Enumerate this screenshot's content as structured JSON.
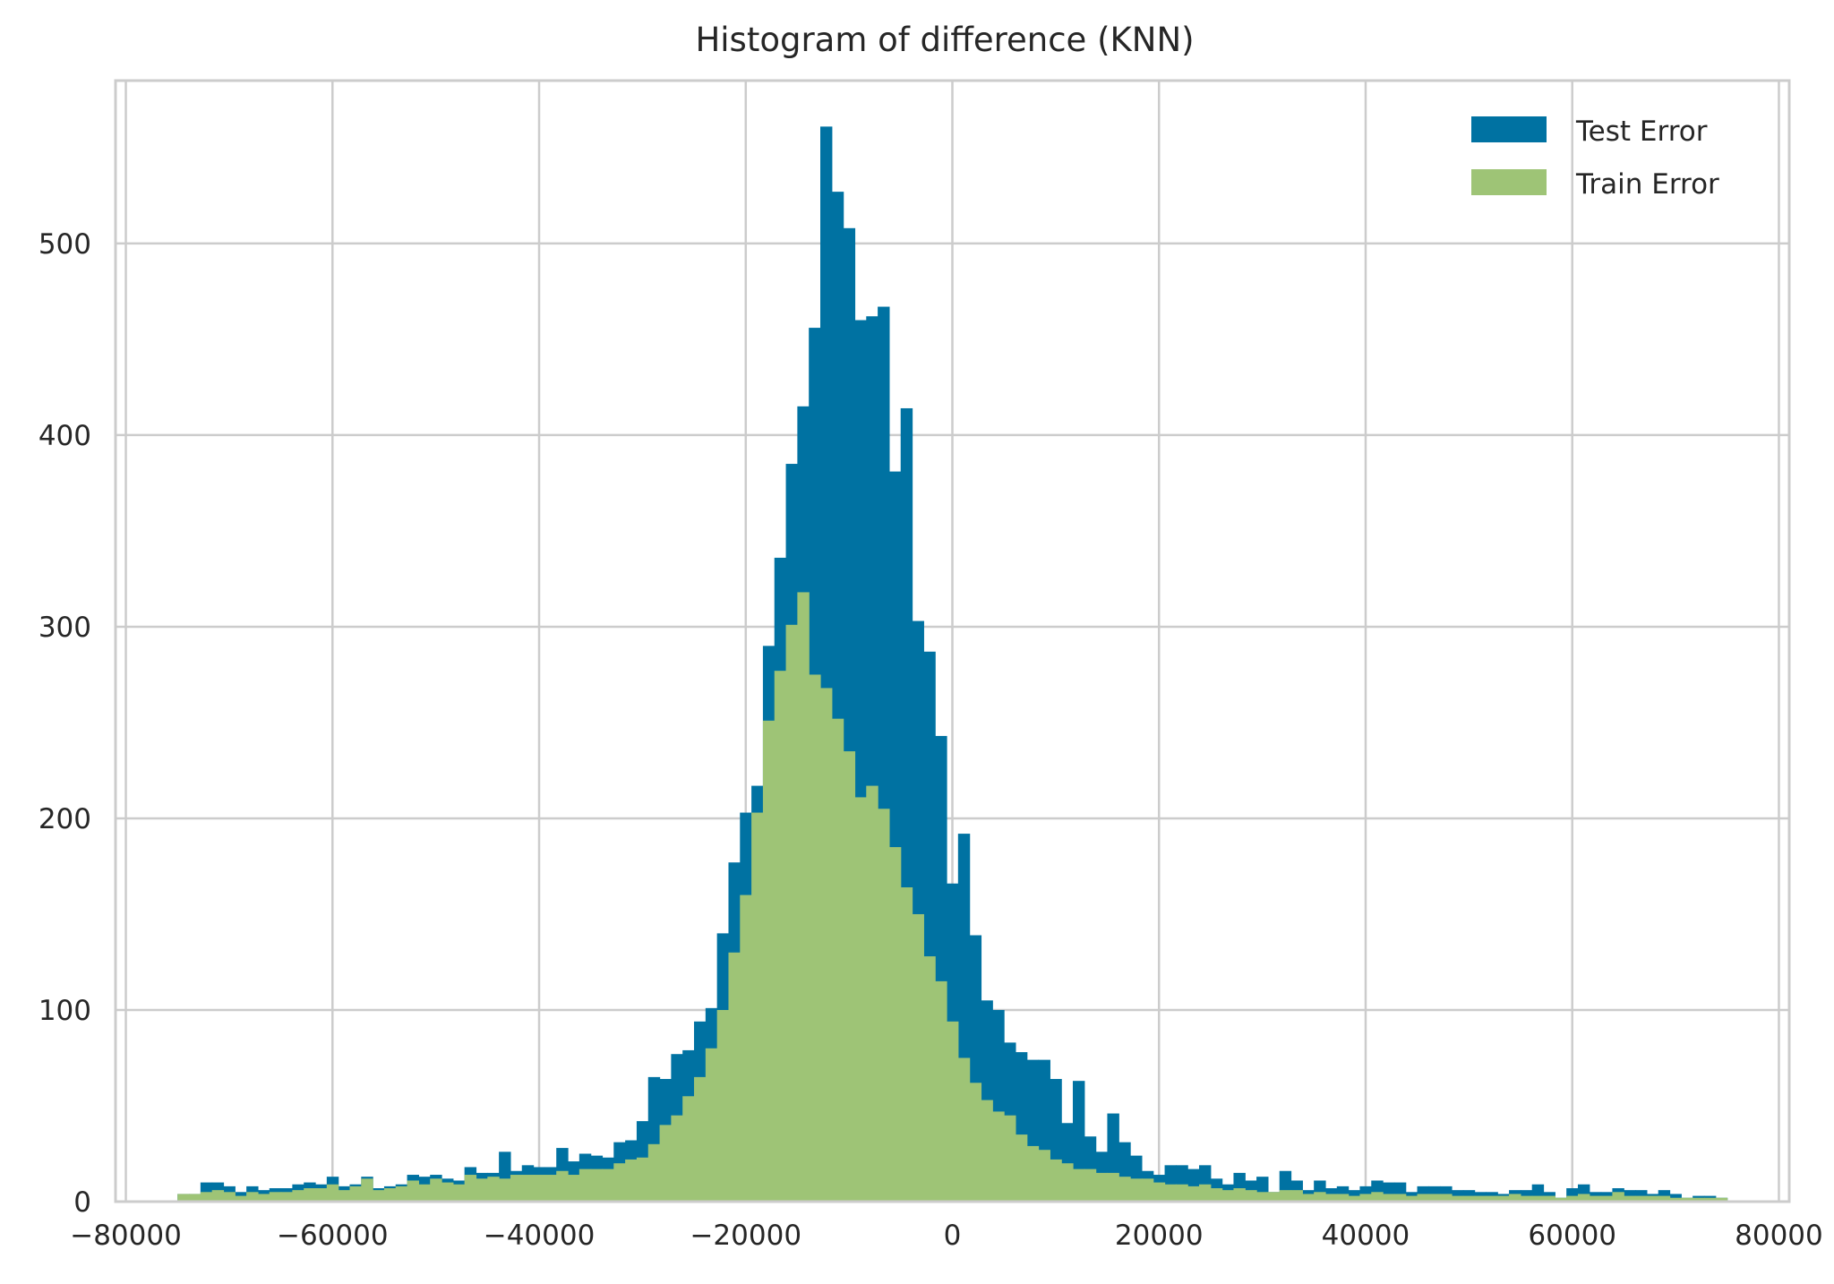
{
  "chart_data": {
    "type": "bar",
    "title": "Histogram of difference (KNN)",
    "xlabel": "",
    "ylabel": "",
    "xlim": [
      -81000,
      81000
    ],
    "ylim": [
      0,
      585
    ],
    "grid": true,
    "legend": "top-right",
    "x_ticks": [
      -80000,
      -60000,
      -40000,
      -20000,
      0,
      20000,
      40000,
      60000,
      80000
    ],
    "x_tick_labels": [
      "−80000",
      "−60000",
      "−40000",
      "−20000",
      "0",
      "20000",
      "40000",
      "60000",
      "80000"
    ],
    "y_ticks": [
      0,
      100,
      200,
      300,
      400,
      500
    ],
    "y_tick_labels": [
      "0",
      "100",
      "200",
      "300",
      "400",
      "500"
    ],
    "bin_start": -75000,
    "bin_width": 1111,
    "series": [
      {
        "name": "Test Error",
        "color": "#0072a2",
        "values": [
          4,
          4,
          10,
          10,
          8,
          5,
          8,
          6,
          7,
          7,
          9,
          10,
          9,
          13,
          8,
          9,
          13,
          7,
          8,
          9,
          14,
          13,
          14,
          12,
          11,
          18,
          15,
          15,
          26,
          16,
          19,
          18,
          18,
          28,
          21,
          25,
          24,
          23,
          31,
          32,
          42,
          65,
          64,
          77,
          79,
          94,
          101,
          140,
          177,
          203,
          217,
          290,
          336,
          385,
          415,
          456,
          561,
          527,
          508,
          460,
          462,
          467,
          381,
          414,
          303,
          287,
          243,
          166,
          192,
          139,
          105,
          100,
          83,
          78,
          74,
          74,
          64,
          41,
          63,
          34,
          26,
          46,
          31,
          24,
          16,
          14,
          19,
          19,
          17,
          19,
          12,
          9,
          15,
          11,
          13,
          5,
          16,
          11,
          6,
          11,
          7,
          8,
          6,
          8,
          11,
          10,
          10,
          5,
          8,
          8,
          8,
          6,
          6,
          5,
          5,
          4,
          6,
          6,
          9,
          5,
          2,
          7,
          9,
          5,
          5,
          7,
          6,
          6,
          4,
          6,
          4,
          2,
          3,
          3,
          2
        ],
        "note": ""
      },
      {
        "name": "Train Error",
        "color": "#9ec476",
        "values": [
          4,
          4,
          5,
          6,
          5,
          3,
          5,
          4,
          5,
          5,
          6,
          7,
          7,
          9,
          6,
          8,
          12,
          6,
          7,
          8,
          11,
          9,
          12,
          10,
          9,
          14,
          12,
          13,
          12,
          14,
          14,
          14,
          14,
          16,
          14,
          17,
          17,
          17,
          20,
          22,
          23,
          30,
          40,
          45,
          55,
          65,
          80,
          100,
          130,
          160,
          203,
          251,
          277,
          301,
          318,
          275,
          268,
          252,
          235,
          211,
          217,
          205,
          185,
          164,
          150,
          128,
          115,
          94,
          75,
          62,
          53,
          47,
          45,
          35,
          29,
          27,
          22,
          20,
          17,
          17,
          15,
          15,
          13,
          12,
          12,
          10,
          9,
          9,
          8,
          9,
          7,
          6,
          7,
          6,
          5,
          5,
          6,
          6,
          4,
          5,
          4,
          4,
          3,
          4,
          5,
          4,
          4,
          3,
          4,
          4,
          4,
          3,
          3,
          3,
          3,
          3,
          4,
          3,
          3,
          3,
          2,
          3,
          4,
          3,
          3,
          5,
          3,
          3,
          3,
          3,
          2,
          2,
          2,
          2,
          2
        ]
      }
    ]
  }
}
